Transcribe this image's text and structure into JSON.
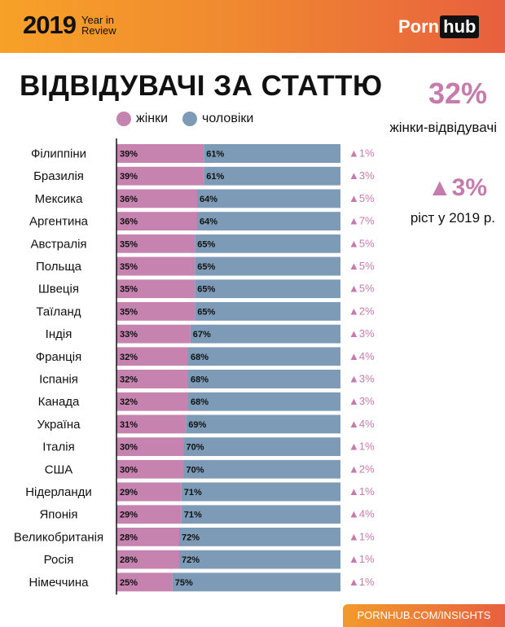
{
  "header": {
    "year": "2019",
    "year_in": "Year in",
    "review": "Review",
    "logo_porn": "Porn",
    "logo_hub": "hub"
  },
  "title": "ВІДВІДУВАЧІ ЗА СТАТТЮ",
  "legend": {
    "female": "жінки",
    "male": "чоловіки"
  },
  "stats": {
    "female_share": "32%",
    "female_share_label": "жінки-відвідувачі",
    "growth": "▲3%",
    "growth_label": "ріст у 2019 р."
  },
  "footer": "PORNHUB.COM/INSIGHTS",
  "colors": {
    "female": "#c683b0",
    "male": "#7d9bb7",
    "change": "#c57bab",
    "accent": "#f08a30"
  },
  "chart_data": {
    "type": "bar",
    "stacked": true,
    "orientation": "horizontal",
    "xlim": [
      0,
      100
    ],
    "categories": [
      "Філиппіни",
      "Бразилія",
      "Мексика",
      "Аргентина",
      "Австралія",
      "Польща",
      "Швеція",
      "Таїланд",
      "Індія",
      "Франція",
      "Іспанія",
      "Канада",
      "Україна",
      "Італія",
      "США",
      "Нідерланди",
      "Японія",
      "Великобританія",
      "Росія",
      "Німеччина"
    ],
    "series": [
      {
        "name": "жінки",
        "values": [
          39,
          39,
          36,
          36,
          35,
          35,
          35,
          35,
          33,
          32,
          32,
          32,
          31,
          30,
          30,
          29,
          29,
          28,
          28,
          25
        ]
      },
      {
        "name": "чоловіки",
        "values": [
          61,
          61,
          64,
          64,
          65,
          65,
          65,
          65,
          67,
          68,
          68,
          68,
          69,
          70,
          70,
          71,
          71,
          72,
          72,
          75
        ]
      }
    ],
    "change": [
      "▲1%",
      "▲3%",
      "▲5%",
      "▲7%",
      "▲5%",
      "▲5%",
      "▲5%",
      "▲2%",
      "▲3%",
      "▲4%",
      "▲3%",
      "▲3%",
      "▲4%",
      "▲1%",
      "▲2%",
      "▲1%",
      "▲4%",
      "▲1%",
      "▲1%",
      "▲1%"
    ]
  }
}
